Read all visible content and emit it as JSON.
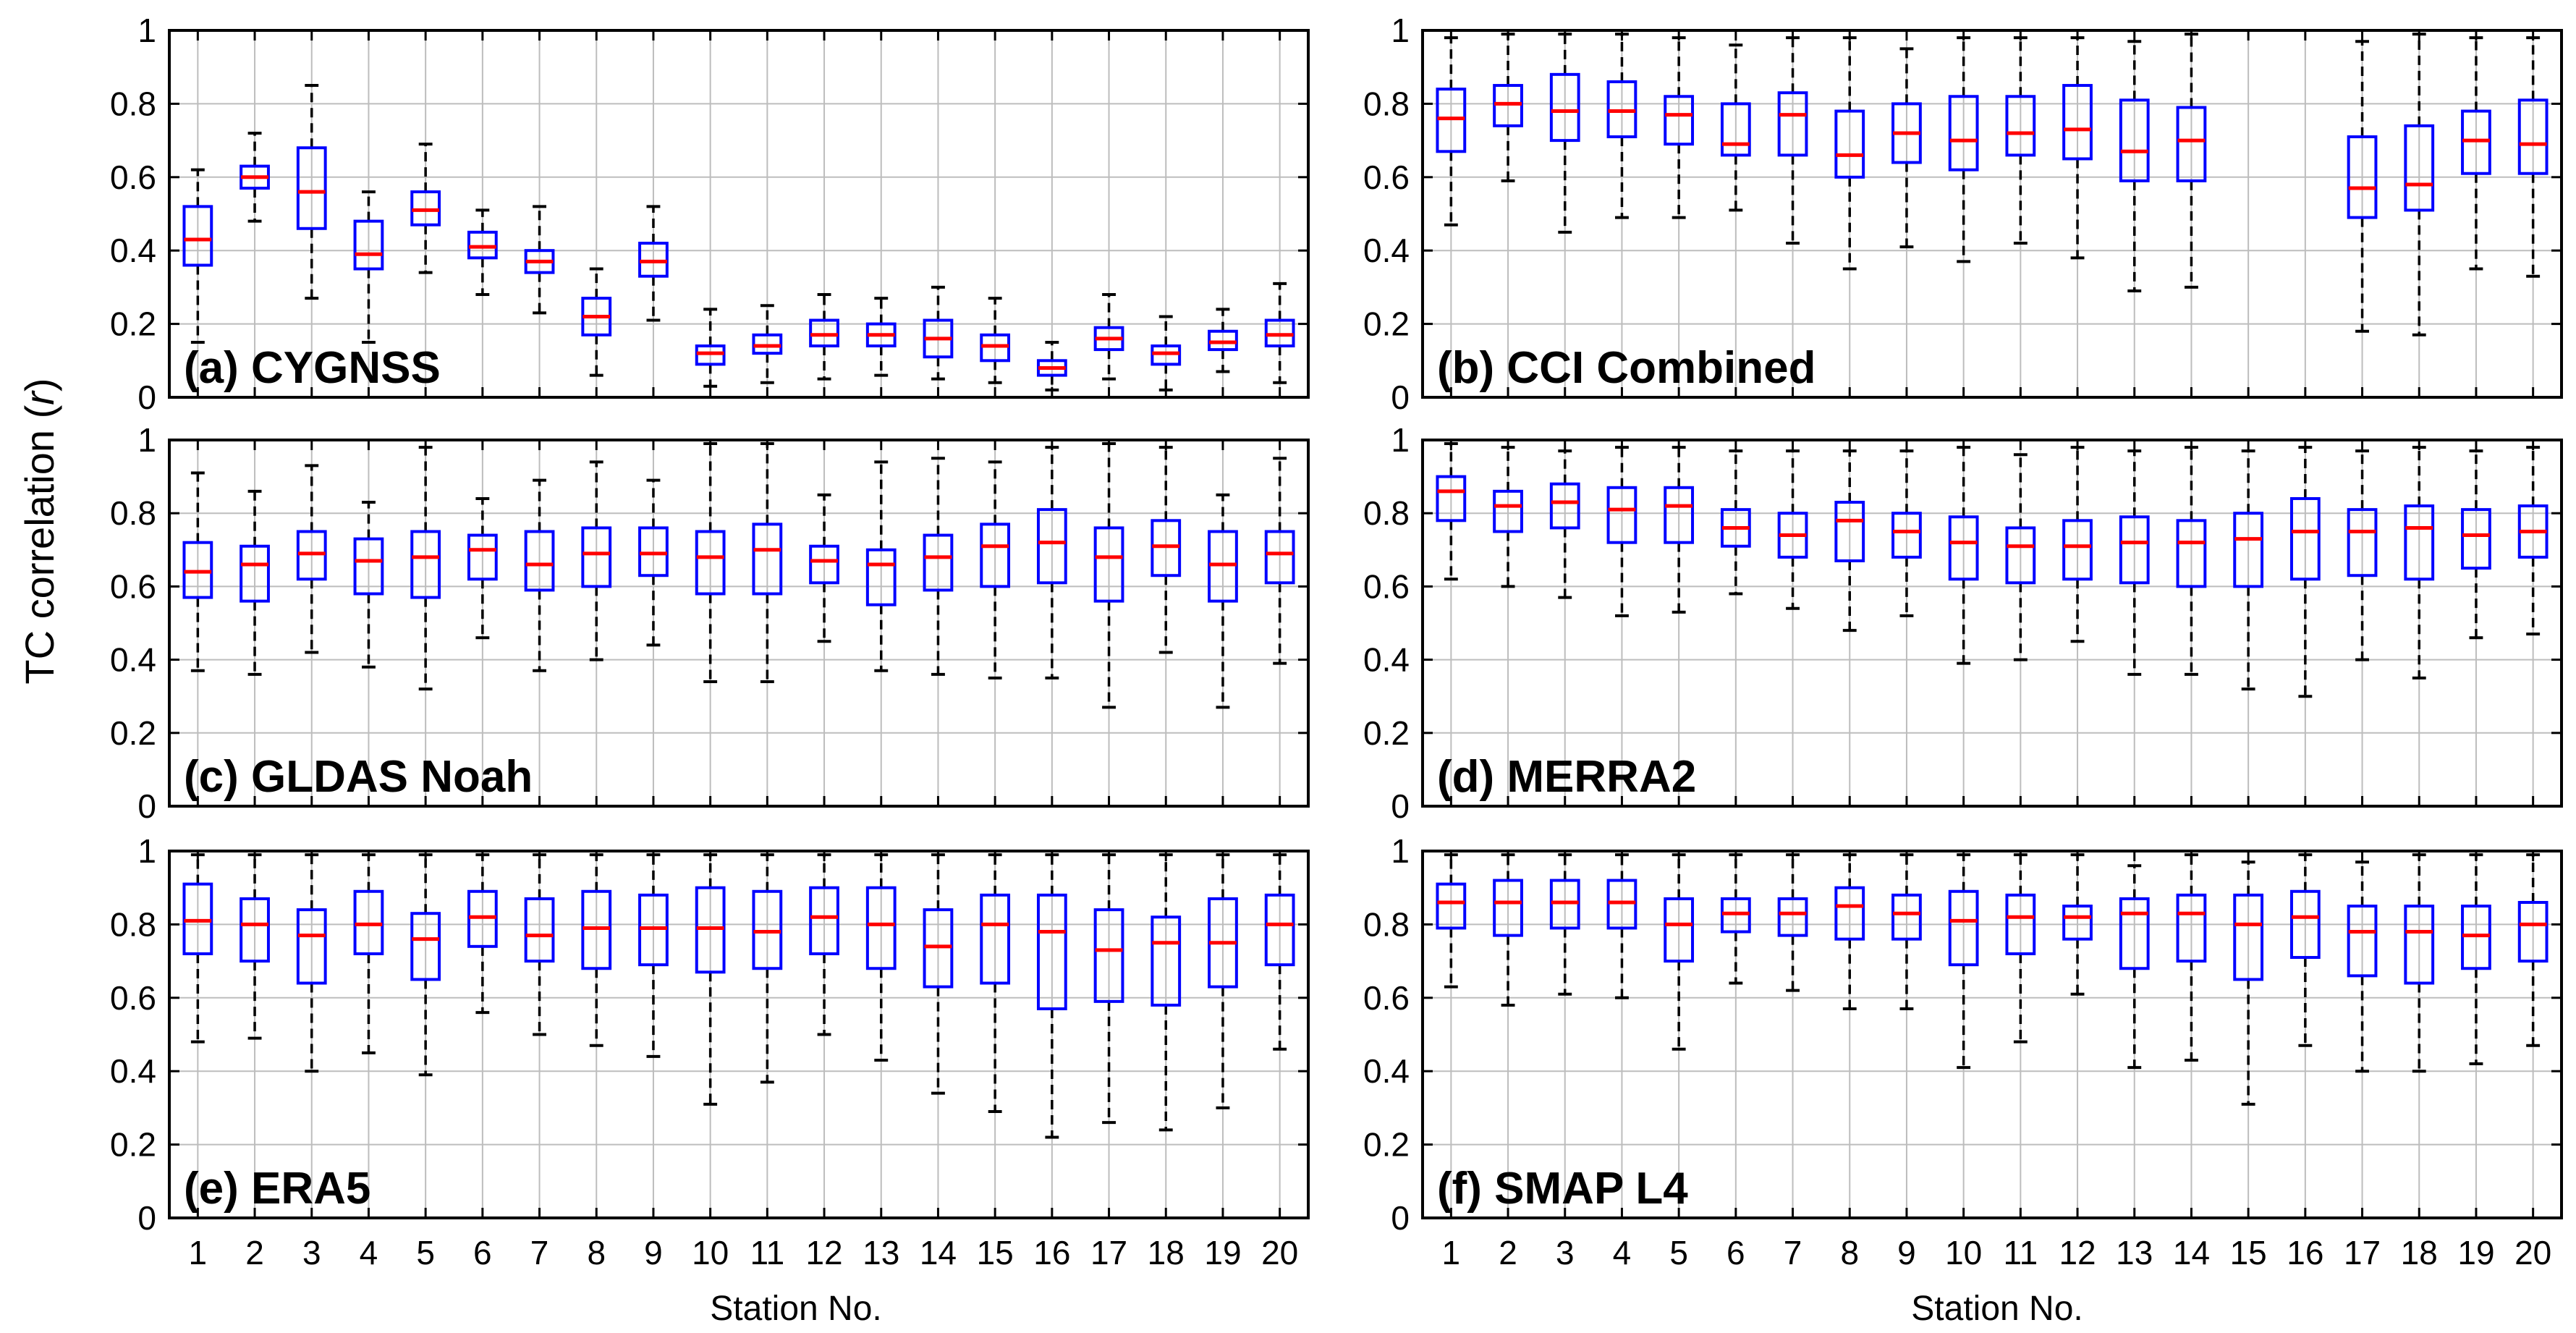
{
  "figure": {
    "ylabel": "TC correlation (",
    "ylabel_italic": "r",
    "ylabel_close": ")",
    "xlabel_left": "Station No.",
    "xlabel_right": "Station No."
  },
  "chart_data": [
    {
      "type": "box",
      "label": "(a) CYGNSS",
      "ylim": [
        0,
        1
      ],
      "yticks": [
        "0",
        "0.2",
        "0.4",
        "0.6",
        "0.8",
        "1"
      ],
      "categories": [
        "1",
        "2",
        "3",
        "4",
        "5",
        "6",
        "7",
        "8",
        "9",
        "10",
        "11",
        "12",
        "13",
        "14",
        "15",
        "16",
        "17",
        "18",
        "19",
        "20"
      ],
      "boxes": [
        {
          "lo": 0.15,
          "q1": 0.36,
          "med": 0.43,
          "q3": 0.52,
          "hi": 0.62
        },
        {
          "lo": 0.48,
          "q1": 0.57,
          "med": 0.6,
          "q3": 0.63,
          "hi": 0.72
        },
        {
          "lo": 0.27,
          "q1": 0.46,
          "med": 0.56,
          "q3": 0.68,
          "hi": 0.85
        },
        {
          "lo": 0.15,
          "q1": 0.35,
          "med": 0.39,
          "q3": 0.48,
          "hi": 0.56
        },
        {
          "lo": 0.34,
          "q1": 0.47,
          "med": 0.51,
          "q3": 0.56,
          "hi": 0.69
        },
        {
          "lo": 0.28,
          "q1": 0.38,
          "med": 0.41,
          "q3": 0.45,
          "hi": 0.51
        },
        {
          "lo": 0.23,
          "q1": 0.34,
          "med": 0.37,
          "q3": 0.4,
          "hi": 0.52
        },
        {
          "lo": 0.06,
          "q1": 0.17,
          "med": 0.22,
          "q3": 0.27,
          "hi": 0.35
        },
        {
          "lo": 0.21,
          "q1": 0.33,
          "med": 0.37,
          "q3": 0.42,
          "hi": 0.52
        },
        {
          "lo": 0.03,
          "q1": 0.09,
          "med": 0.12,
          "q3": 0.14,
          "hi": 0.24
        },
        {
          "lo": 0.04,
          "q1": 0.12,
          "med": 0.14,
          "q3": 0.17,
          "hi": 0.25
        },
        {
          "lo": 0.05,
          "q1": 0.14,
          "med": 0.17,
          "q3": 0.21,
          "hi": 0.28
        },
        {
          "lo": 0.06,
          "q1": 0.14,
          "med": 0.17,
          "q3": 0.2,
          "hi": 0.27
        },
        {
          "lo": 0.05,
          "q1": 0.11,
          "med": 0.16,
          "q3": 0.21,
          "hi": 0.3
        },
        {
          "lo": 0.04,
          "q1": 0.1,
          "med": 0.14,
          "q3": 0.17,
          "hi": 0.27
        },
        {
          "lo": 0.02,
          "q1": 0.06,
          "med": 0.08,
          "q3": 0.1,
          "hi": 0.15
        },
        {
          "lo": 0.05,
          "q1": 0.13,
          "med": 0.16,
          "q3": 0.19,
          "hi": 0.28
        },
        {
          "lo": 0.02,
          "q1": 0.09,
          "med": 0.12,
          "q3": 0.14,
          "hi": 0.22
        },
        {
          "lo": 0.07,
          "q1": 0.13,
          "med": 0.15,
          "q3": 0.18,
          "hi": 0.24
        },
        {
          "lo": 0.04,
          "q1": 0.14,
          "med": 0.17,
          "q3": 0.21,
          "hi": 0.31
        }
      ]
    },
    {
      "type": "box",
      "label": "(b) CCI Combined",
      "ylim": [
        0,
        1
      ],
      "yticks": [
        "0",
        "0.2",
        "0.4",
        "0.6",
        "0.8",
        "1"
      ],
      "categories": [
        "1",
        "2",
        "3",
        "4",
        "5",
        "6",
        "7",
        "8",
        "9",
        "10",
        "11",
        "12",
        "13",
        "14",
        "15",
        "16",
        "17",
        "18",
        "19",
        "20"
      ],
      "boxes": [
        {
          "lo": 0.47,
          "q1": 0.67,
          "med": 0.76,
          "q3": 0.84,
          "hi": 0.98
        },
        {
          "lo": 0.59,
          "q1": 0.74,
          "med": 0.8,
          "q3": 0.85,
          "hi": 0.99
        },
        {
          "lo": 0.45,
          "q1": 0.7,
          "med": 0.78,
          "q3": 0.88,
          "hi": 0.99
        },
        {
          "lo": 0.49,
          "q1": 0.71,
          "med": 0.78,
          "q3": 0.86,
          "hi": 0.99
        },
        {
          "lo": 0.49,
          "q1": 0.69,
          "med": 0.77,
          "q3": 0.82,
          "hi": 0.98
        },
        {
          "lo": 0.51,
          "q1": 0.66,
          "med": 0.69,
          "q3": 0.8,
          "hi": 0.96
        },
        {
          "lo": 0.42,
          "q1": 0.66,
          "med": 0.77,
          "q3": 0.83,
          "hi": 0.98
        },
        {
          "lo": 0.35,
          "q1": 0.6,
          "med": 0.66,
          "q3": 0.78,
          "hi": 0.98
        },
        {
          "lo": 0.41,
          "q1": 0.64,
          "med": 0.72,
          "q3": 0.8,
          "hi": 0.95
        },
        {
          "lo": 0.37,
          "q1": 0.62,
          "med": 0.7,
          "q3": 0.82,
          "hi": 0.98
        },
        {
          "lo": 0.42,
          "q1": 0.66,
          "med": 0.72,
          "q3": 0.82,
          "hi": 0.98
        },
        {
          "lo": 0.38,
          "q1": 0.65,
          "med": 0.73,
          "q3": 0.85,
          "hi": 0.98
        },
        {
          "lo": 0.29,
          "q1": 0.59,
          "med": 0.67,
          "q3": 0.81,
          "hi": 0.97
        },
        {
          "lo": 0.3,
          "q1": 0.59,
          "med": 0.7,
          "q3": 0.79,
          "hi": 0.99
        },
        null,
        null,
        {
          "lo": 0.18,
          "q1": 0.49,
          "med": 0.57,
          "q3": 0.71,
          "hi": 0.97
        },
        {
          "lo": 0.17,
          "q1": 0.51,
          "med": 0.58,
          "q3": 0.74,
          "hi": 0.99
        },
        {
          "lo": 0.35,
          "q1": 0.61,
          "med": 0.7,
          "q3": 0.78,
          "hi": 0.98
        },
        {
          "lo": 0.33,
          "q1": 0.61,
          "med": 0.69,
          "q3": 0.81,
          "hi": 0.98
        }
      ]
    },
    {
      "type": "box",
      "label": "(c) GLDAS Noah",
      "ylim": [
        0,
        1
      ],
      "yticks": [
        "0",
        "0.2",
        "0.4",
        "0.6",
        "0.8",
        "1"
      ],
      "categories": [
        "1",
        "2",
        "3",
        "4",
        "5",
        "6",
        "7",
        "8",
        "9",
        "10",
        "11",
        "12",
        "13",
        "14",
        "15",
        "16",
        "17",
        "18",
        "19",
        "20"
      ],
      "boxes": [
        {
          "lo": 0.37,
          "q1": 0.57,
          "med": 0.64,
          "q3": 0.72,
          "hi": 0.91
        },
        {
          "lo": 0.36,
          "q1": 0.56,
          "med": 0.66,
          "q3": 0.71,
          "hi": 0.86
        },
        {
          "lo": 0.42,
          "q1": 0.62,
          "med": 0.69,
          "q3": 0.75,
          "hi": 0.93
        },
        {
          "lo": 0.38,
          "q1": 0.58,
          "med": 0.67,
          "q3": 0.73,
          "hi": 0.83
        },
        {
          "lo": 0.32,
          "q1": 0.57,
          "med": 0.68,
          "q3": 0.75,
          "hi": 0.98
        },
        {
          "lo": 0.46,
          "q1": 0.62,
          "med": 0.7,
          "q3": 0.74,
          "hi": 0.84
        },
        {
          "lo": 0.37,
          "q1": 0.59,
          "med": 0.66,
          "q3": 0.75,
          "hi": 0.89
        },
        {
          "lo": 0.4,
          "q1": 0.6,
          "med": 0.69,
          "q3": 0.76,
          "hi": 0.94
        },
        {
          "lo": 0.44,
          "q1": 0.63,
          "med": 0.69,
          "q3": 0.76,
          "hi": 0.89
        },
        {
          "lo": 0.34,
          "q1": 0.58,
          "med": 0.68,
          "q3": 0.75,
          "hi": 0.99
        },
        {
          "lo": 0.34,
          "q1": 0.58,
          "med": 0.7,
          "q3": 0.77,
          "hi": 0.99
        },
        {
          "lo": 0.45,
          "q1": 0.61,
          "med": 0.67,
          "q3": 0.71,
          "hi": 0.85
        },
        {
          "lo": 0.37,
          "q1": 0.55,
          "med": 0.66,
          "q3": 0.7,
          "hi": 0.94
        },
        {
          "lo": 0.36,
          "q1": 0.59,
          "med": 0.68,
          "q3": 0.74,
          "hi": 0.95
        },
        {
          "lo": 0.35,
          "q1": 0.6,
          "med": 0.71,
          "q3": 0.77,
          "hi": 0.94
        },
        {
          "lo": 0.35,
          "q1": 0.61,
          "med": 0.72,
          "q3": 0.81,
          "hi": 0.98
        },
        {
          "lo": 0.27,
          "q1": 0.56,
          "med": 0.68,
          "q3": 0.76,
          "hi": 0.99
        },
        {
          "lo": 0.42,
          "q1": 0.63,
          "med": 0.71,
          "q3": 0.78,
          "hi": 0.98
        },
        {
          "lo": 0.27,
          "q1": 0.56,
          "med": 0.66,
          "q3": 0.75,
          "hi": 0.85
        },
        {
          "lo": 0.39,
          "q1": 0.61,
          "med": 0.69,
          "q3": 0.75,
          "hi": 0.95
        }
      ]
    },
    {
      "type": "box",
      "label": "(d) MERRA2",
      "ylim": [
        0,
        1
      ],
      "yticks": [
        "0",
        "0.2",
        "0.4",
        "0.6",
        "0.8",
        "1"
      ],
      "categories": [
        "1",
        "2",
        "3",
        "4",
        "5",
        "6",
        "7",
        "8",
        "9",
        "10",
        "11",
        "12",
        "13",
        "14",
        "15",
        "16",
        "17",
        "18",
        "19",
        "20"
      ],
      "boxes": [
        {
          "lo": 0.62,
          "q1": 0.78,
          "med": 0.86,
          "q3": 0.9,
          "hi": 0.99
        },
        {
          "lo": 0.6,
          "q1": 0.75,
          "med": 0.82,
          "q3": 0.86,
          "hi": 0.98
        },
        {
          "lo": 0.57,
          "q1": 0.76,
          "med": 0.83,
          "q3": 0.88,
          "hi": 0.97
        },
        {
          "lo": 0.52,
          "q1": 0.72,
          "med": 0.81,
          "q3": 0.87,
          "hi": 0.98
        },
        {
          "lo": 0.53,
          "q1": 0.72,
          "med": 0.82,
          "q3": 0.87,
          "hi": 0.98
        },
        {
          "lo": 0.58,
          "q1": 0.71,
          "med": 0.76,
          "q3": 0.81,
          "hi": 0.97
        },
        {
          "lo": 0.54,
          "q1": 0.68,
          "med": 0.74,
          "q3": 0.8,
          "hi": 0.97
        },
        {
          "lo": 0.48,
          "q1": 0.67,
          "med": 0.78,
          "q3": 0.83,
          "hi": 0.97
        },
        {
          "lo": 0.52,
          "q1": 0.68,
          "med": 0.75,
          "q3": 0.8,
          "hi": 0.97
        },
        {
          "lo": 0.39,
          "q1": 0.62,
          "med": 0.72,
          "q3": 0.79,
          "hi": 0.98
        },
        {
          "lo": 0.4,
          "q1": 0.61,
          "med": 0.71,
          "q3": 0.76,
          "hi": 0.96
        },
        {
          "lo": 0.45,
          "q1": 0.62,
          "med": 0.71,
          "q3": 0.78,
          "hi": 0.98
        },
        {
          "lo": 0.36,
          "q1": 0.61,
          "med": 0.72,
          "q3": 0.79,
          "hi": 0.97
        },
        {
          "lo": 0.36,
          "q1": 0.6,
          "med": 0.72,
          "q3": 0.78,
          "hi": 0.98
        },
        {
          "lo": 0.32,
          "q1": 0.6,
          "med": 0.73,
          "q3": 0.8,
          "hi": 0.97
        },
        {
          "lo": 0.3,
          "q1": 0.62,
          "med": 0.75,
          "q3": 0.84,
          "hi": 0.98
        },
        {
          "lo": 0.4,
          "q1": 0.63,
          "med": 0.75,
          "q3": 0.81,
          "hi": 0.97
        },
        {
          "lo": 0.35,
          "q1": 0.62,
          "med": 0.76,
          "q3": 0.82,
          "hi": 0.98
        },
        {
          "lo": 0.46,
          "q1": 0.65,
          "med": 0.74,
          "q3": 0.81,
          "hi": 0.97
        },
        {
          "lo": 0.47,
          "q1": 0.68,
          "med": 0.75,
          "q3": 0.82,
          "hi": 0.98
        }
      ]
    },
    {
      "type": "box",
      "label": "(e) ERA5",
      "ylim": [
        0,
        1
      ],
      "yticks": [
        "0",
        "0.2",
        "0.4",
        "0.6",
        "0.8",
        "1"
      ],
      "categories": [
        "1",
        "2",
        "3",
        "4",
        "5",
        "6",
        "7",
        "8",
        "9",
        "10",
        "11",
        "12",
        "13",
        "14",
        "15",
        "16",
        "17",
        "18",
        "19",
        "20"
      ],
      "boxes": [
        {
          "lo": 0.48,
          "q1": 0.72,
          "med": 0.81,
          "q3": 0.91,
          "hi": 0.99
        },
        {
          "lo": 0.49,
          "q1": 0.7,
          "med": 0.8,
          "q3": 0.87,
          "hi": 0.99
        },
        {
          "lo": 0.4,
          "q1": 0.64,
          "med": 0.77,
          "q3": 0.84,
          "hi": 0.99
        },
        {
          "lo": 0.45,
          "q1": 0.72,
          "med": 0.8,
          "q3": 0.89,
          "hi": 0.99
        },
        {
          "lo": 0.39,
          "q1": 0.65,
          "med": 0.76,
          "q3": 0.83,
          "hi": 0.99
        },
        {
          "lo": 0.56,
          "q1": 0.74,
          "med": 0.82,
          "q3": 0.89,
          "hi": 0.99
        },
        {
          "lo": 0.5,
          "q1": 0.7,
          "med": 0.77,
          "q3": 0.87,
          "hi": 0.99
        },
        {
          "lo": 0.47,
          "q1": 0.68,
          "med": 0.79,
          "q3": 0.89,
          "hi": 0.99
        },
        {
          "lo": 0.44,
          "q1": 0.69,
          "med": 0.79,
          "q3": 0.88,
          "hi": 0.99
        },
        {
          "lo": 0.31,
          "q1": 0.67,
          "med": 0.79,
          "q3": 0.9,
          "hi": 0.99
        },
        {
          "lo": 0.37,
          "q1": 0.68,
          "med": 0.78,
          "q3": 0.89,
          "hi": 0.99
        },
        {
          "lo": 0.5,
          "q1": 0.72,
          "med": 0.82,
          "q3": 0.9,
          "hi": 0.99
        },
        {
          "lo": 0.43,
          "q1": 0.68,
          "med": 0.8,
          "q3": 0.9,
          "hi": 0.99
        },
        {
          "lo": 0.34,
          "q1": 0.63,
          "med": 0.74,
          "q3": 0.84,
          "hi": 0.99
        },
        {
          "lo": 0.29,
          "q1": 0.64,
          "med": 0.8,
          "q3": 0.88,
          "hi": 0.99
        },
        {
          "lo": 0.22,
          "q1": 0.57,
          "med": 0.78,
          "q3": 0.88,
          "hi": 0.99
        },
        {
          "lo": 0.26,
          "q1": 0.59,
          "med": 0.73,
          "q3": 0.84,
          "hi": 0.99
        },
        {
          "lo": 0.24,
          "q1": 0.58,
          "med": 0.75,
          "q3": 0.82,
          "hi": 0.99
        },
        {
          "lo": 0.3,
          "q1": 0.63,
          "med": 0.75,
          "q3": 0.87,
          "hi": 0.99
        },
        {
          "lo": 0.46,
          "q1": 0.69,
          "med": 0.8,
          "q3": 0.88,
          "hi": 0.99
        }
      ]
    },
    {
      "type": "box",
      "label": "(f) SMAP L4",
      "ylim": [
        0,
        1
      ],
      "yticks": [
        "0",
        "0.2",
        "0.4",
        "0.6",
        "0.8",
        "1"
      ],
      "categories": [
        "1",
        "2",
        "3",
        "4",
        "5",
        "6",
        "7",
        "8",
        "9",
        "10",
        "11",
        "12",
        "13",
        "14",
        "15",
        "16",
        "17",
        "18",
        "19",
        "20"
      ],
      "boxes": [
        {
          "lo": 0.63,
          "q1": 0.79,
          "med": 0.86,
          "q3": 0.91,
          "hi": 0.99
        },
        {
          "lo": 0.58,
          "q1": 0.77,
          "med": 0.86,
          "q3": 0.92,
          "hi": 0.99
        },
        {
          "lo": 0.61,
          "q1": 0.79,
          "med": 0.86,
          "q3": 0.92,
          "hi": 0.99
        },
        {
          "lo": 0.6,
          "q1": 0.79,
          "med": 0.86,
          "q3": 0.92,
          "hi": 0.99
        },
        {
          "lo": 0.46,
          "q1": 0.7,
          "med": 0.8,
          "q3": 0.87,
          "hi": 0.99
        },
        {
          "lo": 0.64,
          "q1": 0.78,
          "med": 0.83,
          "q3": 0.87,
          "hi": 0.99
        },
        {
          "lo": 0.62,
          "q1": 0.77,
          "med": 0.83,
          "q3": 0.87,
          "hi": 0.99
        },
        {
          "lo": 0.57,
          "q1": 0.76,
          "med": 0.85,
          "q3": 0.9,
          "hi": 0.99
        },
        {
          "lo": 0.57,
          "q1": 0.76,
          "med": 0.83,
          "q3": 0.88,
          "hi": 0.99
        },
        {
          "lo": 0.41,
          "q1": 0.69,
          "med": 0.81,
          "q3": 0.89,
          "hi": 0.99
        },
        {
          "lo": 0.48,
          "q1": 0.72,
          "med": 0.82,
          "q3": 0.88,
          "hi": 0.99
        },
        {
          "lo": 0.61,
          "q1": 0.76,
          "med": 0.82,
          "q3": 0.85,
          "hi": 0.99
        },
        {
          "lo": 0.41,
          "q1": 0.68,
          "med": 0.83,
          "q3": 0.87,
          "hi": 0.96
        },
        {
          "lo": 0.43,
          "q1": 0.7,
          "med": 0.83,
          "q3": 0.88,
          "hi": 0.99
        },
        {
          "lo": 0.31,
          "q1": 0.65,
          "med": 0.8,
          "q3": 0.88,
          "hi": 0.97
        },
        {
          "lo": 0.47,
          "q1": 0.71,
          "med": 0.82,
          "q3": 0.89,
          "hi": 0.99
        },
        {
          "lo": 0.4,
          "q1": 0.66,
          "med": 0.78,
          "q3": 0.85,
          "hi": 0.97
        },
        {
          "lo": 0.4,
          "q1": 0.64,
          "med": 0.78,
          "q3": 0.85,
          "hi": 0.99
        },
        {
          "lo": 0.42,
          "q1": 0.68,
          "med": 0.77,
          "q3": 0.85,
          "hi": 0.99
        },
        {
          "lo": 0.47,
          "q1": 0.7,
          "med": 0.8,
          "q3": 0.86,
          "hi": 0.99
        }
      ]
    }
  ],
  "colors": {
    "box": "#0000ff",
    "median": "#ff0000",
    "whisker": "#000000",
    "grid": "#bdbdbd",
    "axis": "#000000"
  }
}
